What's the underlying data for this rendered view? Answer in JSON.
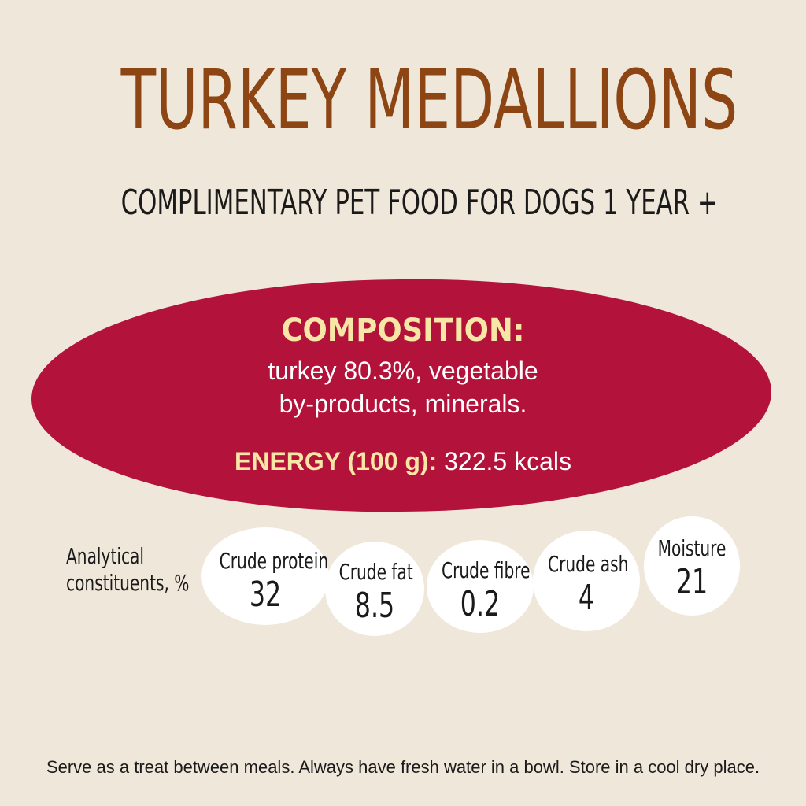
{
  "title": "TURKEY MEDALLIONS",
  "subtitle": "COMPLIMENTARY PET FOOD FOR DOGS 1 YEAR +",
  "composition": {
    "heading": "COMPOSITION:",
    "line1": "turkey 80.3%, vegetable",
    "line2": "by-products, minerals.",
    "energy_label": "ENERGY (100 g):",
    "energy_value": "322.5 kcals"
  },
  "analytical": {
    "label_line1": "Analytical",
    "label_line2": "constituents, %",
    "items": [
      {
        "label": "Crude protein",
        "value": "32"
      },
      {
        "label": "Crude fat",
        "value": "8.5"
      },
      {
        "label": "Crude fibre",
        "value": "0.2"
      },
      {
        "label": "Crude ash",
        "value": "4"
      },
      {
        "label": "Moisture",
        "value": "21"
      }
    ]
  },
  "footer": "Serve as a treat between meals. Always have fresh water in a bowl. Store in a cool dry place.",
  "colors": {
    "background": "#efe7d9",
    "title": "#8c4513",
    "blob": "#b3123a",
    "accent_text": "#f6e7a6"
  }
}
